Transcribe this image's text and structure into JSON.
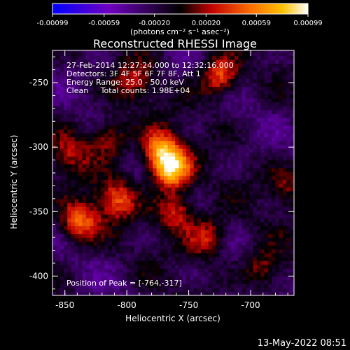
{
  "chart_data": {
    "type": "heatmap",
    "title": "Reconstructed RHESSI Image",
    "xlabel": "Heliocentric X (arcsec)",
    "ylabel": "Heliocentric Y (arcsec)",
    "xlim": [
      -860,
      -665
    ],
    "ylim": [
      -415,
      -225
    ],
    "x_ticks": [
      -850,
      -800,
      -750,
      -700
    ],
    "y_ticks": [
      -250,
      -300,
      -350,
      -400
    ],
    "colorbar": {
      "range": [
        -0.00099,
        0.00099
      ],
      "tick_values": [
        -0.00099,
        -0.00059,
        -0.0002,
        0.0002,
        0.00059,
        0.00099
      ],
      "tick_labels": [
        "-0.00099",
        "-0.00059",
        "-0.00020",
        "0.00020",
        "0.00059",
        "0.00099"
      ],
      "unit_label": "(photons cm⁻² s⁻¹ asec⁻²)",
      "colors": [
        "#0000ff",
        "#7000c0",
        "#000000",
        "#c00000",
        "#ff7000",
        "#ffc000",
        "#ffffff"
      ]
    },
    "annotations": [
      "27-Feb-2014 12:27:24.000 to 12:32:16.000",
      "Detectors: 3F 4F 5F 6F 7F 8F, Att 1",
      "Energy Range: 25.0 - 50.0 keV",
      "Clean     Total counts: 1.98E+04"
    ],
    "peak_label": "Position of Peak = [-764,-317]",
    "peak": {
      "x": -764,
      "y": -317
    },
    "sources": [
      {
        "x": -764,
        "y": -317,
        "value": 0.00099
      },
      {
        "x": -773,
        "y": -302,
        "value": 0.0008
      },
      {
        "x": -838,
        "y": -358,
        "value": 0.0007
      },
      {
        "x": -725,
        "y": -245,
        "value": 0.0007
      },
      {
        "x": -808,
        "y": -340,
        "value": 0.0006
      },
      {
        "x": -760,
        "y": -350,
        "value": 0.0006
      },
      {
        "x": -735,
        "y": -370,
        "value": 0.00055
      },
      {
        "x": -845,
        "y": -305,
        "value": 0.0004
      },
      {
        "x": -815,
        "y": -292,
        "value": 0.0005
      },
      {
        "x": -795,
        "y": -250,
        "value": 0.0004
      },
      {
        "x": -690,
        "y": -395,
        "value": 0.00045
      },
      {
        "x": -670,
        "y": -330,
        "value": 0.00035
      }
    ],
    "background_min": -0.00059
  },
  "timestamp": "13-May-2022 08:51"
}
